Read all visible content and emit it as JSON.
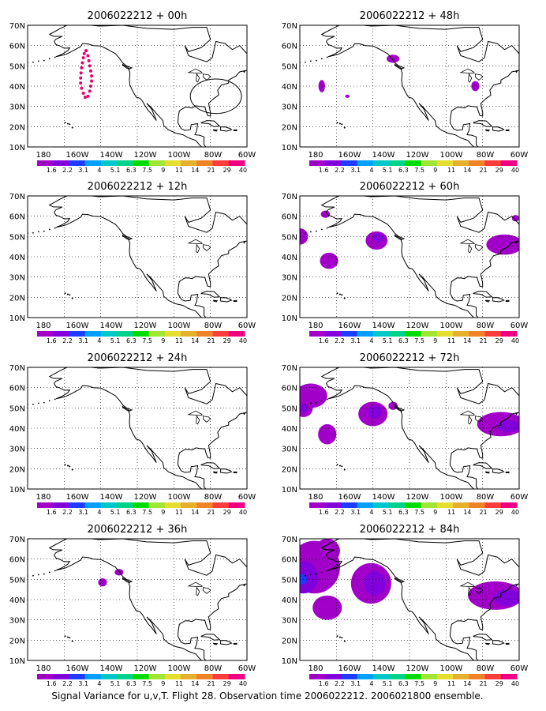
{
  "panel_titles": [
    "2006022212 + 00h",
    "2006022212 + 12h",
    "2006022212 + 24h",
    "2006022212 + 36h",
    "2006022212 + 48h",
    "2006022212 + 60h",
    "2006022212 + 72h",
    "2006022212 + 84h"
  ],
  "lat_labels": [
    "70N",
    "60N",
    "50N",
    "40N",
    "30N",
    "20N",
    "10N"
  ],
  "lon_labels": [
    "180",
    "160W",
    "140W",
    "120W",
    "100W",
    "80W",
    "60W"
  ],
  "colorbar": {
    "labels": [
      "1.6",
      "2.2",
      "3.1",
      "4",
      "5.1",
      "6.3",
      "7.5",
      "9",
      "11",
      "14",
      "21",
      "29",
      "40"
    ],
    "colors": [
      "#a000c8",
      "#8200dc",
      "#1e3cff",
      "#00a0ff",
      "#00c8c8",
      "#00d28c",
      "#00dc00",
      "#a0e632",
      "#e6dc32",
      "#e6af2d",
      "#f08228",
      "#fa3c3c",
      "#f00082"
    ]
  },
  "footer": "Signal Variance for u,v,T. Flight 28. Observation time 2006022212. 2006021800 ensemble."
}
